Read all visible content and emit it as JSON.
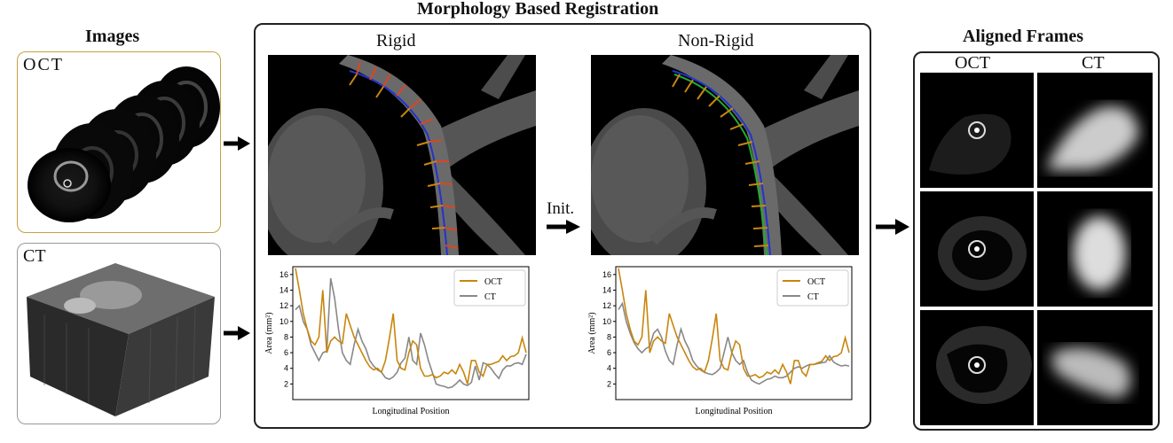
{
  "images_section": {
    "title": "Images",
    "oct_label": "OCT",
    "ct_label": "CT"
  },
  "registration": {
    "title": "Morphology Based Registration",
    "rigid_title": "Rigid",
    "nonrigid_title": "Non-Rigid",
    "init_label": "Init."
  },
  "aligned": {
    "title": "Aligned Frames",
    "oct_label": "OCT",
    "ct_label": "CT"
  },
  "colors": {
    "oct": "#c8860d",
    "ct": "#888888",
    "images_oct_border": "#c8a040",
    "images_ct_border": "#999999"
  },
  "chart_data": [
    {
      "type": "line",
      "title": "",
      "xlabel": "Longitudinal Position",
      "ylabel": "Area (mm²)",
      "ylim": [
        0,
        17
      ],
      "yticks": [
        "2",
        "4",
        "6",
        "8",
        "10",
        "12",
        "14",
        "16"
      ],
      "legend": "top-right",
      "series": [
        {
          "name": "OCT",
          "values": [
            16.8,
            14,
            11,
            9,
            7.5,
            7,
            8,
            14,
            6,
            7.5,
            8,
            7.5,
            7.2,
            11,
            9.5,
            8,
            7,
            6,
            5,
            4.2,
            3.8,
            4,
            3.5,
            5,
            7.8,
            11,
            5,
            4,
            3.8,
            6,
            7.5,
            7,
            4,
            3,
            3,
            3.2,
            2.8,
            3,
            3.5,
            3.3,
            3.8,
            3.3,
            4.5,
            3.5,
            2,
            5,
            5,
            3.5,
            3,
            4.5,
            4.5,
            4.7,
            4.9,
            5.6,
            5,
            5.5,
            5.6,
            6,
            7.9,
            6
          ]
        },
        {
          "name": "CT",
          "values": [
            11.5,
            12,
            10,
            9,
            7,
            6,
            5,
            6,
            6.2,
            15.5,
            13,
            9,
            6,
            5,
            4.5,
            7,
            9,
            7.5,
            6.5,
            5,
            4.3,
            3.8,
            3.5,
            2.8,
            2.6,
            2.9,
            3.5,
            4.7,
            5.3,
            8,
            5,
            4.5,
            8.5,
            7,
            5,
            3.5,
            2,
            1.8,
            1.7,
            1.5,
            1.6,
            2,
            2.5,
            2,
            1.8,
            2.2,
            4.3,
            2.5,
            4.7,
            4.5,
            4,
            3.3,
            2.7,
            3.8,
            4.3,
            4.3,
            4.6,
            4.7,
            4.5,
            5.8
          ]
        }
      ]
    },
    {
      "type": "line",
      "title": "",
      "xlabel": "Longitudinal Position",
      "ylabel": "Area (mm²)",
      "ylim": [
        0,
        17
      ],
      "yticks": [
        "2",
        "4",
        "6",
        "8",
        "10",
        "12",
        "14",
        "16"
      ],
      "legend": "top-right",
      "series": [
        {
          "name": "OCT",
          "values": [
            16.8,
            14,
            11,
            9,
            7.5,
            7,
            8,
            14,
            6,
            7.5,
            8,
            7.5,
            7.2,
            11,
            9.5,
            8,
            7,
            6,
            5,
            4.2,
            3.8,
            4,
            3.5,
            5,
            7.8,
            11,
            5,
            4,
            3.8,
            6,
            7.5,
            7,
            4,
            3,
            3,
            3.2,
            2.8,
            3,
            3.5,
            3.3,
            3.8,
            3.3,
            4.5,
            3.5,
            2,
            5,
            5,
            3.5,
            3,
            4.5,
            4.5,
            4.7,
            4.9,
            5.6,
            5,
            5.5,
            5.6,
            6,
            7.9,
            6
          ]
        },
        {
          "name": "CT",
          "values": [
            11.5,
            12.3,
            10,
            8.5,
            7.3,
            6.5,
            6,
            6.5,
            6.8,
            8.5,
            9,
            8,
            6.2,
            5,
            4.5,
            7,
            9,
            7.5,
            6.5,
            5,
            4.3,
            3.8,
            3.5,
            3.3,
            3.2,
            3.5,
            4,
            6,
            8,
            6,
            5,
            4.5,
            5,
            3.5,
            2.5,
            2.2,
            2,
            2.3,
            2.6,
            2.7,
            3,
            2.8,
            2.8,
            3,
            3.5,
            4,
            4.2,
            4,
            4.3,
            4.5,
            4.5,
            4.6,
            4.7,
            4.8,
            5.6,
            4.8,
            4.5,
            4.3,
            4.4,
            4.3
          ]
        }
      ]
    }
  ]
}
